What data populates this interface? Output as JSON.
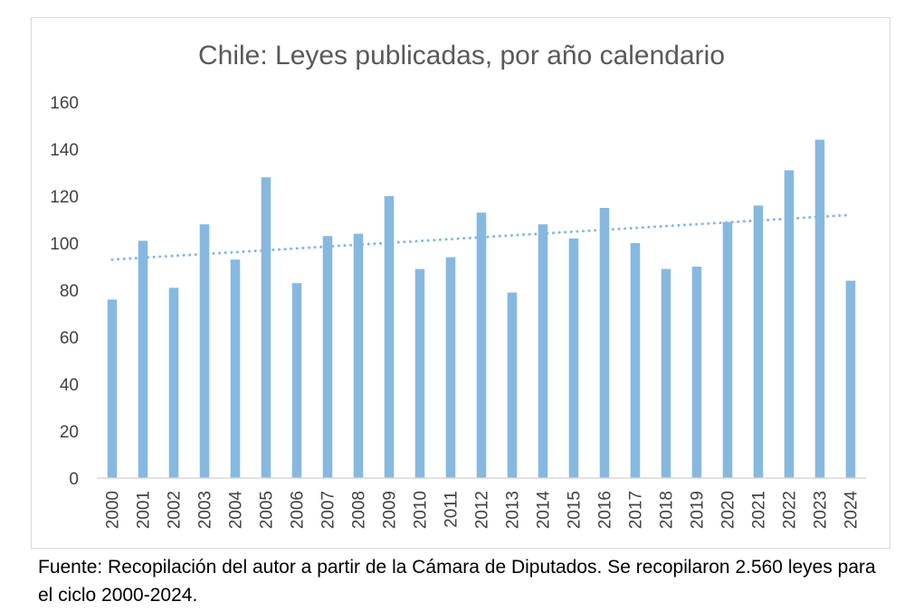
{
  "chart_data": {
    "type": "bar",
    "title": "Chile: Leyes publicadas, por año calendario",
    "xlabel": "",
    "ylabel": "",
    "categories": [
      "2000",
      "2001",
      "2002",
      "2003",
      "2004",
      "2005",
      "2006",
      "2007",
      "2008",
      "2009",
      "2010",
      "2011",
      "2012",
      "2013",
      "2014",
      "2015",
      "2016",
      "2017",
      "2018",
      "2019",
      "2020",
      "2021",
      "2022",
      "2023",
      "2024"
    ],
    "values": [
      76,
      101,
      81,
      108,
      93,
      128,
      83,
      103,
      104,
      120,
      89,
      94,
      113,
      79,
      108,
      102,
      115,
      100,
      89,
      90,
      109,
      116,
      131,
      144,
      84
    ],
    "ylim": [
      0,
      160
    ],
    "yticks": [
      0,
      20,
      40,
      60,
      80,
      100,
      120,
      140,
      160
    ],
    "trendline": {
      "type": "linear",
      "style": "dotted",
      "start": 93,
      "end": 112
    },
    "bar_color": "#87b8e0",
    "trend_color": "#87b8e0",
    "grid": false,
    "legend": "none"
  },
  "caption": "Fuente: Recopilación del autor a partir de la Cámara de Diputados. Se recopilaron 2.560 leyes para el ciclo 2000-2024."
}
